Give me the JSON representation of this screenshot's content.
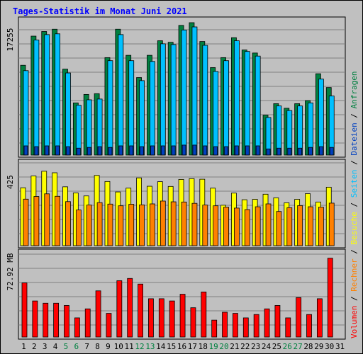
{
  "chart_data": {
    "type": "bar",
    "title": "Tages-Statistik im Monat Juni 2021",
    "x": [
      "1",
      "2",
      "3",
      "4",
      "5",
      "6",
      "7",
      "8",
      "9",
      "10",
      "11",
      "12",
      "13",
      "14",
      "15",
      "16",
      "17",
      "18",
      "19",
      "20",
      "21",
      "22",
      "23",
      "24",
      "25",
      "26",
      "27",
      "28",
      "29",
      "30",
      "31"
    ],
    "weekend_days": [
      "5",
      "6",
      "12",
      "13",
      "19",
      "20",
      "26",
      "27"
    ],
    "panels": [
      {
        "label": "17255",
        "ylim": [
          0,
          17255
        ],
        "series": [
          {
            "name": "Anfragen",
            "color": "#008040",
            "values": [
              11700,
              15500,
              16100,
              16400,
              11200,
              6800,
              7900,
              8000,
              12700,
              16400,
              13000,
              10100,
              13000,
              14900,
              14700,
              16900,
              17255,
              14800,
              11400,
              12700,
              15300,
              13700,
              13300,
              5200,
              6700,
              6100,
              6700,
              7100,
              10600,
              8800,
              null
            ]
          },
          {
            "name": "Seiten",
            "color": "#00c0ff",
            "values": [
              11000,
              15000,
              15700,
              15800,
              10700,
              6500,
              7200,
              7300,
              12300,
              15700,
              12300,
              9700,
              12200,
              14500,
              14400,
              16300,
              16700,
              14300,
              10900,
              12300,
              14900,
              13500,
              12900,
              4900,
              6400,
              5800,
              6400,
              6800,
              9900,
              7700,
              null
            ]
          },
          {
            "name": "Dateien",
            "color": "#0040c0",
            "values": [
              1200,
              1100,
              1200,
              1200,
              1100,
              900,
              1000,
              1100,
              1000,
              1200,
              1200,
              1100,
              1200,
              1200,
              1200,
              1300,
              1300,
              1200,
              1100,
              1100,
              1200,
              1200,
              1200,
              800,
              900,
              900,
              900,
              1000,
              1100,
              1000,
              null
            ]
          }
        ]
      },
      {
        "label": "425",
        "ylim": [
          0,
          425
        ],
        "series": [
          {
            "name": "Besuche",
            "color": "#ffff00",
            "values": [
              305,
              367,
              392,
              384,
              310,
              278,
              262,
              370,
              338,
              283,
              303,
              357,
              313,
              337,
              312,
              349,
              353,
              350,
              303,
              213,
              277,
              242,
              244,
              271,
              252,
              226,
              244,
              274,
              230,
              308,
              null
            ]
          },
          {
            "name": "Rechner",
            "color": "#ff8000",
            "values": [
              245,
              259,
              273,
              260,
              232,
              188,
              214,
              227,
              219,
              210,
              218,
              215,
              220,
              235,
              231,
              230,
              223,
              214,
              210,
              203,
              198,
              190,
              205,
              220,
              180,
              200,
              211,
              205,
              203,
              224,
              null
            ]
          }
        ]
      },
      {
        "label": "72.92 MB",
        "ylim": [
          0,
          72.92
        ],
        "series": [
          {
            "name": "Volumen",
            "color": "#ff0000",
            "values": [
              48,
              32,
              30,
              30,
              28,
              17,
              25,
              41,
              21,
              50,
              52,
              47,
              34,
              34,
              32,
              38,
              26,
              40,
              15,
              22,
              21,
              17,
              20,
              25,
              28,
              17,
              35,
              20,
              34,
              70,
              null
            ]
          }
        ]
      }
    ],
    "right_labels": [
      {
        "text": "Volumen",
        "color": "#ff0000"
      },
      {
        "text": "Rechner",
        "color": "#ff8000"
      },
      {
        "text": "Besuche",
        "color": "#ffff00"
      },
      {
        "text": "Seiten",
        "color": "#00c0ff"
      },
      {
        "text": "Dateien",
        "color": "#0040c0"
      },
      {
        "text": "Anfragen",
        "color": "#008040"
      }
    ],
    "sep": " / ",
    "grid": true
  }
}
